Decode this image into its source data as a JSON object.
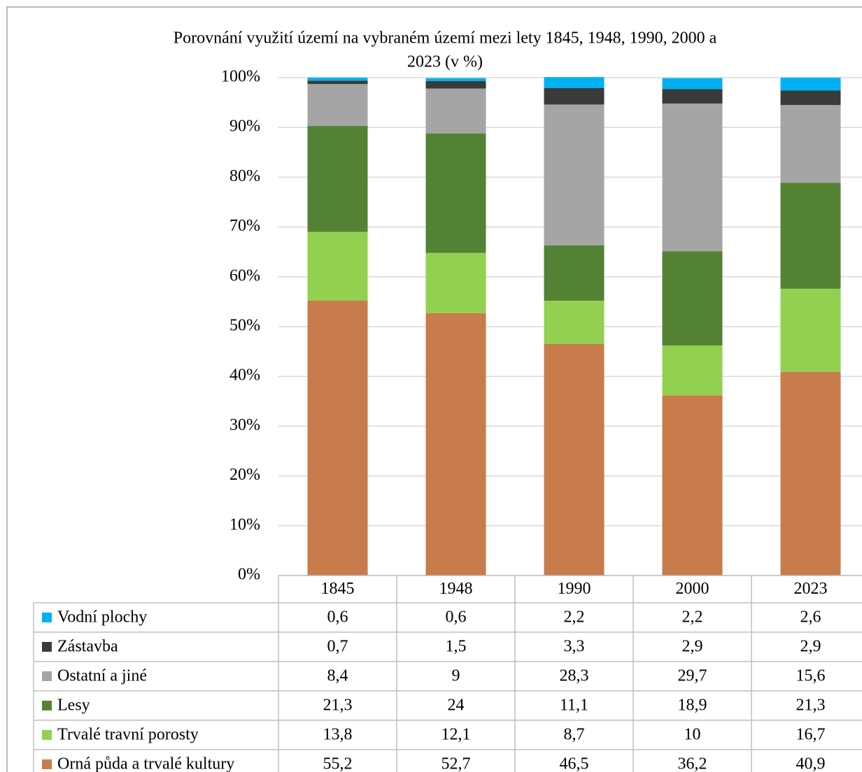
{
  "chart_data": {
    "type": "stacked_bar",
    "title": [
      "Porovnání využití území na vybraném území mezi lety 1845, 1948, 1990, 2000 a",
      "2023 (v %)"
    ],
    "categories": [
      "1845",
      "1948",
      "1990",
      "2000",
      "2023"
    ],
    "ylim": [
      0,
      100
    ],
    "yticks": [
      {
        "value": 0,
        "label": "0%"
      },
      {
        "value": 10,
        "label": "10%"
      },
      {
        "value": 20,
        "label": "20%"
      },
      {
        "value": 30,
        "label": "30%"
      },
      {
        "value": 40,
        "label": "40%"
      },
      {
        "value": 50,
        "label": "50%"
      },
      {
        "value": 60,
        "label": "60%"
      },
      {
        "value": 70,
        "label": "70%"
      },
      {
        "value": 80,
        "label": "80%"
      },
      {
        "value": 90,
        "label": "90%"
      },
      {
        "value": 100,
        "label": "100%"
      }
    ],
    "grid": true,
    "series": [
      {
        "name": "Orná půda a trvalé kultury",
        "color": "#c87b4b",
        "values": [
          55.2,
          52.7,
          46.5,
          36.2,
          40.9
        ],
        "value_labels": [
          "55,2",
          "52,7",
          "46,5",
          "36,2",
          "40,9"
        ]
      },
      {
        "name": "Trvalé travní porosty",
        "color": "#92d050",
        "values": [
          13.8,
          12.1,
          8.7,
          10,
          16.7
        ],
        "value_labels": [
          "13,8",
          "12,1",
          "8,7",
          "10",
          "16,7"
        ]
      },
      {
        "name": "Lesy",
        "color": "#548235",
        "values": [
          21.3,
          24,
          11.1,
          18.9,
          21.3
        ],
        "value_labels": [
          "21,3",
          "24",
          "11,1",
          "18,9",
          "21,3"
        ]
      },
      {
        "name": "Ostatní a jiné",
        "color": "#a5a5a5",
        "values": [
          8.4,
          9,
          28.3,
          29.7,
          15.6
        ],
        "value_labels": [
          "8,4",
          "9",
          "28,3",
          "29,7",
          "15,6"
        ]
      },
      {
        "name": "Zástavba",
        "color": "#3a3a3a",
        "values": [
          0.7,
          1.5,
          3.3,
          2.9,
          2.9
        ],
        "value_labels": [
          "0,7",
          "1,5",
          "3,3",
          "2,9",
          "2,9"
        ]
      },
      {
        "name": "Vodní plochy",
        "color": "#00b0f0",
        "values": [
          0.6,
          0.6,
          2.2,
          2.2,
          2.6
        ],
        "value_labels": [
          "0,6",
          "0,6",
          "2,2",
          "2,2",
          "2,6"
        ]
      }
    ]
  }
}
